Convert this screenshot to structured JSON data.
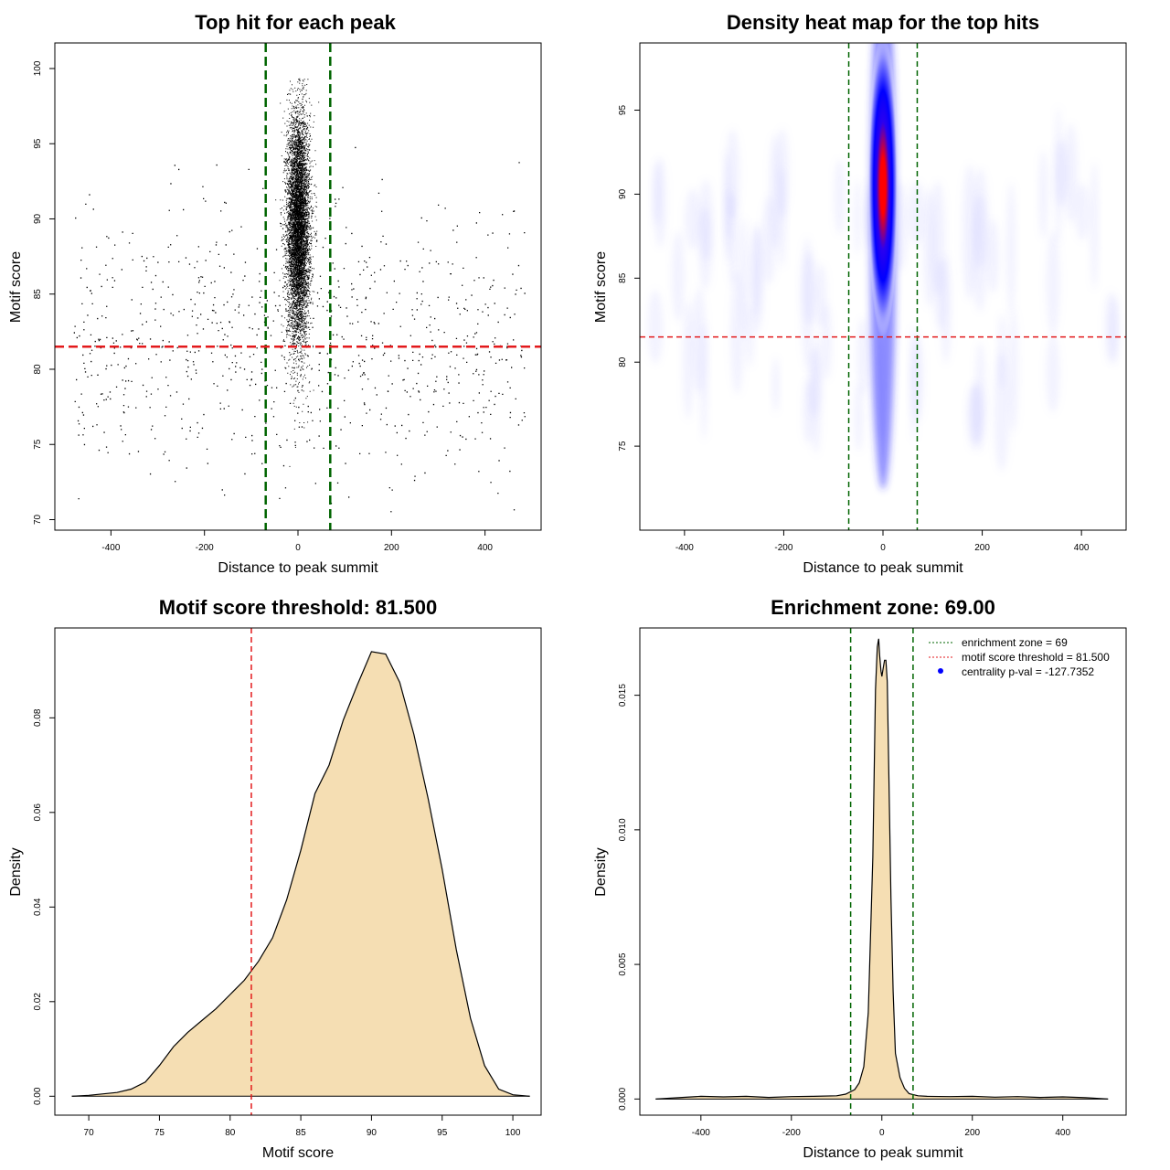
{
  "colors": {
    "zone_line": "#006400",
    "threshold_line": "#e31a1c",
    "fill": "#f5deb3",
    "points": "#000000",
    "heat_low": "#ffffff",
    "heat_mid": "#0000ff",
    "heat_high": "#ff0000"
  },
  "chart_data": [
    {
      "type": "scatter",
      "id": "panel1",
      "title": "Top hit for each peak",
      "xlabel": "Distance to peak summit",
      "ylabel": "Motif score",
      "xlim": [
        -520,
        520
      ],
      "ylim": [
        69.3,
        101.7
      ],
      "xticks": [
        -400,
        -200,
        0,
        200,
        400
      ],
      "yticks": [
        70,
        75,
        80,
        85,
        90,
        95,
        100
      ],
      "vlines": [
        -69,
        69
      ],
      "hline": 81.5,
      "distribution": {
        "center_points": 7000,
        "center_x_sd": 12,
        "center_y_mean": 89.5,
        "center_y_sd": 3.8,
        "background_points": 900,
        "background_x_range": [
          -485,
          485
        ],
        "background_y_mean": 82,
        "background_y_sd": 4.5
      }
    },
    {
      "type": "heatmap",
      "id": "panel2",
      "title": "Density heat map for the top hits",
      "xlabel": "Distance to peak summit",
      "ylabel": "Motif score",
      "xlim": [
        -490,
        490
      ],
      "ylim": [
        70,
        99
      ],
      "xticks": [
        -400,
        -200,
        0,
        200,
        400
      ],
      "yticks": [
        75,
        80,
        85,
        90,
        95
      ],
      "vlines": [
        -69,
        69
      ],
      "hline": 81.5,
      "peak": {
        "x": 0,
        "y": 90.5,
        "x_sd": 18,
        "y_sd": 3.5
      },
      "color_scale": [
        "white",
        "blue",
        "red"
      ]
    },
    {
      "type": "area",
      "id": "panel3",
      "title": "Motif score threshold: 81.500",
      "xlabel": "Motif score",
      "ylabel": "Density",
      "xlim": [
        67.6,
        102.0
      ],
      "ylim": [
        -0.004,
        0.099
      ],
      "xticks": [
        70,
        75,
        80,
        85,
        90,
        95,
        100
      ],
      "yticks": [
        0.0,
        0.02,
        0.04,
        0.06,
        0.08
      ],
      "ytick_labels": [
        "0.00",
        "0.02",
        "0.04",
        "0.06",
        "0.08"
      ],
      "vline": 81.5,
      "x": [
        68.8,
        70,
        72,
        73,
        74,
        75,
        76,
        77,
        78,
        79,
        80,
        81,
        82,
        83,
        84,
        85,
        86,
        87,
        88,
        89,
        90,
        91,
        92,
        93,
        94,
        95,
        96,
        97,
        98,
        99,
        100,
        101.2
      ],
      "y": [
        0.0,
        0.0002,
        0.0008,
        0.0015,
        0.003,
        0.0065,
        0.0105,
        0.0135,
        0.016,
        0.0185,
        0.0215,
        0.0245,
        0.0285,
        0.0335,
        0.0415,
        0.052,
        0.064,
        0.07,
        0.0795,
        0.087,
        0.094,
        0.0935,
        0.0875,
        0.0765,
        0.063,
        0.048,
        0.031,
        0.0165,
        0.0065,
        0.0015,
        0.0003,
        0.0
      ]
    },
    {
      "type": "area",
      "id": "panel4",
      "title": "Enrichment zone: 69.00",
      "xlabel": "Distance to peak summit",
      "ylabel": "Density",
      "xlim": [
        -535,
        540
      ],
      "ylim": [
        -0.0006,
        0.0175
      ],
      "xticks": [
        -400,
        -200,
        0,
        200,
        400
      ],
      "yticks": [
        0.0,
        0.005,
        0.01,
        0.015
      ],
      "ytick_labels": [
        "0.000",
        "0.005",
        "0.010",
        "0.015"
      ],
      "vlines": [
        -69,
        69
      ],
      "x": [
        -500,
        -450,
        -400,
        -350,
        -300,
        -250,
        -200,
        -150,
        -100,
        -80,
        -60,
        -50,
        -40,
        -30,
        -20,
        -14,
        -10,
        -7,
        -5,
        -2,
        0,
        3,
        6,
        9,
        12,
        15,
        20,
        25,
        30,
        40,
        50,
        60,
        80,
        100,
        150,
        200,
        250,
        300,
        350,
        400,
        450,
        500
      ],
      "y": [
        0.0,
        5e-05,
        0.0001,
        8e-05,
        0.0001,
        6e-05,
        9e-05,
        0.0001,
        0.00012,
        0.00018,
        0.00035,
        0.0006,
        0.0012,
        0.0032,
        0.009,
        0.0152,
        0.0168,
        0.0171,
        0.0165,
        0.0159,
        0.0157,
        0.016,
        0.0163,
        0.0163,
        0.0155,
        0.0125,
        0.0075,
        0.004,
        0.0017,
        0.0008,
        0.0004,
        0.0002,
        0.00012,
        0.0001,
        9e-05,
        0.0001,
        7e-05,
        9e-05,
        6e-05,
        8e-05,
        5e-05,
        0.0
      ],
      "legend": [
        {
          "label": "enrichment zone = 69",
          "style": "dotted-line",
          "color": "#006400"
        },
        {
          "label": "motif score threshold = 81.500",
          "style": "dotted-line",
          "color": "#e31a1c"
        },
        {
          "label": "centrality p-val = -127.7352",
          "style": "dot",
          "color": "#0000ff"
        }
      ]
    }
  ]
}
